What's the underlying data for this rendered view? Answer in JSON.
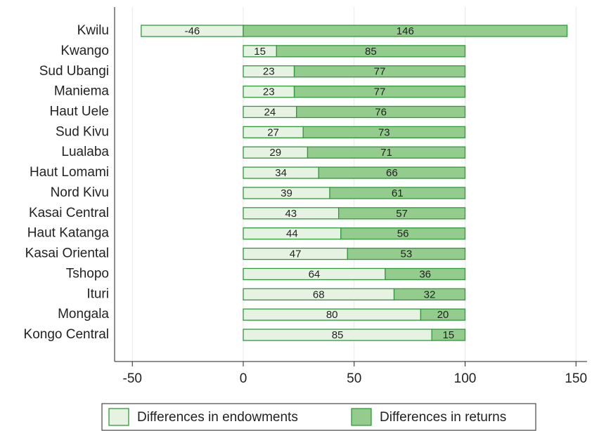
{
  "chart_data": {
    "type": "stacked-bar-horizontal",
    "categories": [
      "Kwilu",
      "Kwango",
      "Sud Ubangi",
      "Maniema",
      "Haut Uele",
      "Sud Kivu",
      "Lualaba",
      "Haut Lomami",
      "Nord Kivu",
      "Kasai Central",
      "Haut Katanga",
      "Kasai Oriental",
      "Tshopo",
      "Ituri",
      "Mongala",
      "Kongo Central"
    ],
    "series": [
      {
        "name": "Differences in endowments",
        "color": "#e6f3e2",
        "values": [
          -46,
          15,
          23,
          23,
          24,
          27,
          29,
          34,
          39,
          43,
          44,
          47,
          64,
          68,
          80,
          85
        ]
      },
      {
        "name": "Differences in returns",
        "color": "#93cc8c",
        "values": [
          146,
          85,
          77,
          77,
          76,
          73,
          71,
          66,
          61,
          57,
          56,
          53,
          36,
          32,
          20,
          15
        ]
      }
    ],
    "edge_color": "#2f9a3a",
    "xlim": [
      -58,
      155
    ],
    "xticks": [
      -50,
      0,
      50,
      100,
      150
    ],
    "grid": true,
    "legend": "bottom"
  }
}
